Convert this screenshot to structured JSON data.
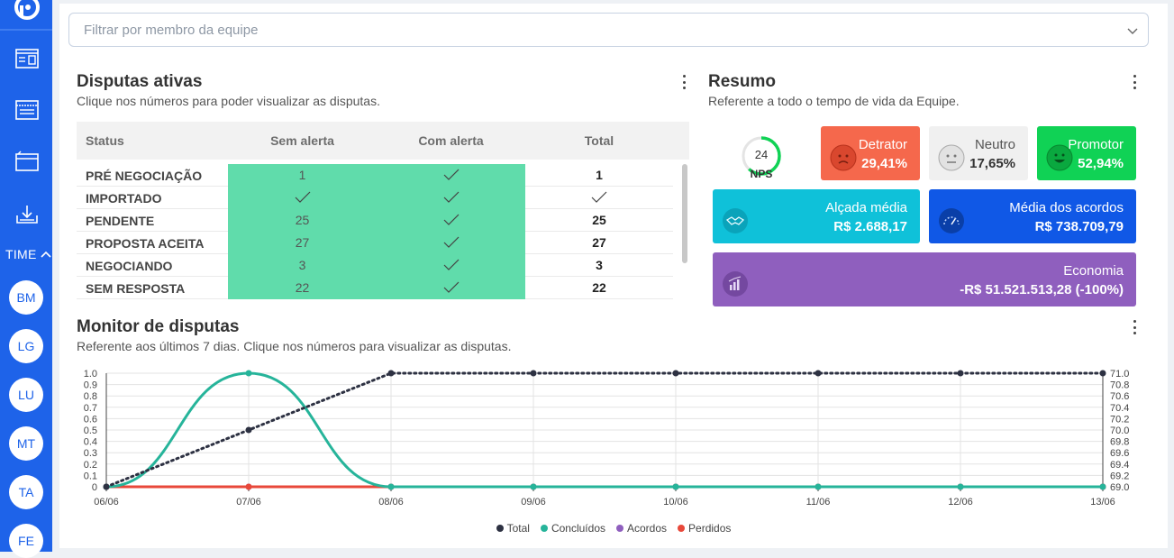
{
  "sidebar": {
    "team_label": "TIME",
    "avatars": [
      "BM",
      "LG",
      "LU",
      "MT",
      "TA",
      "FE"
    ]
  },
  "filter": {
    "placeholder": "Filtrar por membro da equipe"
  },
  "disputas": {
    "title": "Disputas ativas",
    "subtitle": "Clique nos números para poder visualizar as disputas.",
    "headers": [
      "Status",
      "Sem alerta",
      "Com alerta",
      "Total"
    ],
    "rows": [
      {
        "status": "PRÉ NEGOCIAÇÃO",
        "sem_alerta": "1",
        "com_alerta": "check",
        "total": "1"
      },
      {
        "status": "IMPORTADO",
        "sem_alerta": "check",
        "com_alerta": "check",
        "total": "check"
      },
      {
        "status": "PENDENTE",
        "sem_alerta": "25",
        "com_alerta": "check",
        "total": "25"
      },
      {
        "status": "PROPOSTA ACEITA",
        "sem_alerta": "27",
        "com_alerta": "check",
        "total": "27"
      },
      {
        "status": "NEGOCIANDO",
        "sem_alerta": "3",
        "com_alerta": "check",
        "total": "3"
      },
      {
        "status": "SEM RESPOSTA",
        "sem_alerta": "22",
        "com_alerta": "check",
        "total": "22"
      }
    ],
    "highlight_color": "#60dcab"
  },
  "resumo": {
    "title": "Resumo",
    "subtitle": "Referente a todo o tempo de vida da Equipe.",
    "nps": {
      "value": "24",
      "label": "NPS",
      "fraction": 0.62
    },
    "detrator": {
      "label": "Detrator",
      "value": "29,41%",
      "color": "#f5684c"
    },
    "neutro": {
      "label": "Neutro",
      "value": "17,65%",
      "color": "#f0f0f0"
    },
    "promotor": {
      "label": "Promotor",
      "value": "52,94%",
      "color": "#10d255"
    },
    "alcada": {
      "label": "Alçada média",
      "value": "R$ 2.688,17",
      "color": "#0fc1d9"
    },
    "media_acordos": {
      "label": "Média dos acordos",
      "value": "R$ 738.709,79",
      "color": "#1058e6"
    },
    "economia": {
      "label": "Economia",
      "value": "-R$ 51.521.513,28 (-100%)",
      "color": "#8f5fbe"
    }
  },
  "monitor": {
    "title": "Monitor de disputas",
    "subtitle": "Referente aos últimos 7 dias. Clique nos números para visualizar as disputas."
  },
  "chart_data": {
    "type": "line",
    "x": [
      "06/06",
      "07/06",
      "08/06",
      "09/06",
      "10/06",
      "11/06",
      "12/06",
      "13/06"
    ],
    "y_left_ticks": [
      "1.0",
      "0.9",
      "0.8",
      "0.7",
      "0.6",
      "0.5",
      "0.4",
      "0.3",
      "0.2",
      "0.1",
      "0"
    ],
    "y_right_ticks": [
      "71.0",
      "70.8",
      "70.6",
      "70.4",
      "70.2",
      "70.0",
      "69.8",
      "69.6",
      "69.4",
      "69.2",
      "69.0"
    ],
    "ylim_left": [
      0,
      1
    ],
    "ylim_right": [
      69,
      71
    ],
    "grid": true,
    "legend_position": "bottom",
    "series": [
      {
        "name": "Total",
        "color": "#2d3142",
        "axis": "right",
        "style": "dotted",
        "values": [
          69.0,
          70.0,
          71.0,
          71.0,
          71.0,
          71.0,
          71.0,
          71.0
        ]
      },
      {
        "name": "Concluídos",
        "color": "#26b49a",
        "axis": "left",
        "style": "solid",
        "values": [
          0,
          1,
          0,
          0,
          0,
          0,
          0,
          0
        ]
      },
      {
        "name": "Acordos",
        "color": "#8f5fbe",
        "axis": "left",
        "style": "solid",
        "values": [
          0,
          0,
          0,
          0,
          0,
          0,
          0,
          0
        ]
      },
      {
        "name": "Perdidos",
        "color": "#e8483a",
        "axis": "left",
        "style": "solid",
        "values": [
          0,
          0,
          0,
          0,
          0,
          0,
          0,
          0
        ]
      }
    ]
  }
}
